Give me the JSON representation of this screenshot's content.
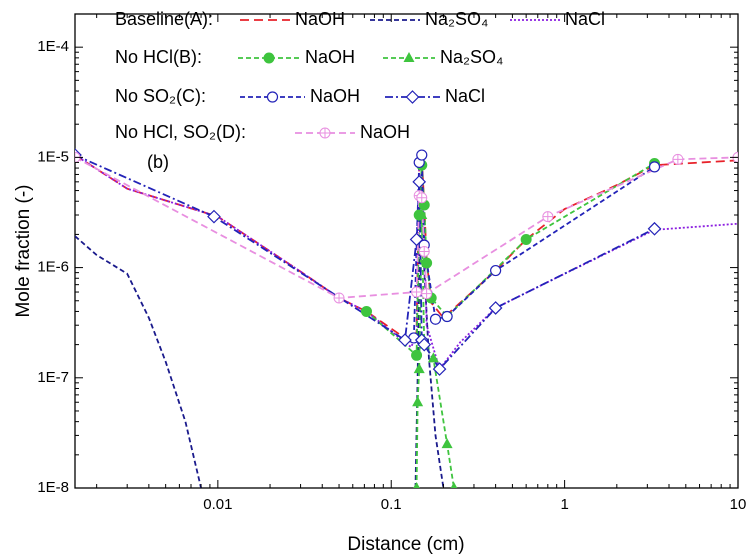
{
  "chart_data": {
    "type": "line",
    "x_label": "Distance (cm)",
    "y_label": "Mole fraction (-)",
    "annotation": "(b)",
    "x_log": true,
    "y_log": true,
    "xlim": [
      0.0015,
      10
    ],
    "ylim": [
      1e-08,
      0.0002
    ],
    "xticks": [
      0.01,
      0.1,
      1,
      10
    ],
    "yticks": [
      {
        "value": 1e-08,
        "label": "1E-8"
      },
      {
        "value": 1e-07,
        "label": "1E-7"
      },
      {
        "value": 1e-06,
        "label": "1E-6"
      },
      {
        "value": 1e-05,
        "label": "1E-5"
      },
      {
        "value": 0.0001,
        "label": "1E-4"
      }
    ],
    "groups": [
      {
        "label": "Baseline(A):",
        "series": [
          {
            "name": "NaOH",
            "color": "#e8222a",
            "dash": "9,5",
            "marker": "none",
            "x": [
              0.0015,
              0.003,
              0.01,
              0.03,
              0.05,
              0.072,
              0.13,
              0.14,
              0.145,
              0.15,
              0.155,
              0.16,
              0.17,
              0.2,
              0.25,
              0.4,
              0.6,
              1,
              2,
              3.3,
              10
            ],
            "values": [
              1.05e-05,
              5.2e-06,
              2.9e-06,
              9.2e-07,
              5.3e-07,
              4e-07,
              2.1e-07,
              2.6e-07,
              8.5e-06,
              1e-05,
              3.7e-06,
              1.2e-06,
              4.8e-07,
              3.5e-07,
              4.8e-07,
              9.4e-07,
              1.8e-06,
              3.4e-06,
              5.6e-06,
              8.5e-06,
              9.4e-06
            ]
          },
          {
            "name": "Na₂SO₄",
            "color": "#1a1a8c",
            "dash": "5,3",
            "marker": "none",
            "x": [
              0.0015,
              0.002,
              0.003,
              0.004,
              0.005,
              0.0065,
              0.008,
              0.1,
              0.138,
              0.142,
              0.145,
              0.15,
              0.155,
              0.165,
              0.18,
              0.2
            ],
            "values": [
              1.93e-06,
              1.3e-06,
              8.8e-07,
              3.5e-07,
              1.4e-07,
              4e-08,
              1e-08,
              null,
              1e-08,
              1e-07,
              1e-06,
              1e-05,
              1e-06,
              1.5e-07,
              3e-08,
              1e-08
            ]
          },
          {
            "name": "NaCl",
            "color": "#8b1ee0",
            "dash": "2,2",
            "marker": "none",
            "x": [
              0.0015,
              0.003,
              0.01,
              0.03,
              0.05,
              0.072,
              0.13,
              0.14,
              0.145,
              0.15,
              0.155,
              0.16,
              0.19,
              0.25,
              0.4,
              1,
              3.3,
              10
            ],
            "values": [
              1.05e-05,
              5.2e-06,
              2.9e-06,
              9.2e-07,
              5.3e-07,
              4e-07,
              1.9e-07,
              2.4e-07,
              8e-06,
              1e-05,
              2e-06,
              3e-07,
              1.2e-07,
              2.1e-07,
              4.3e-07,
              8.8e-07,
              2.2e-06,
              2.5e-06
            ]
          }
        ]
      },
      {
        "label": "No HCl(B):",
        "series": [
          {
            "name": "NaOH",
            "color": "#3ec43e",
            "dash": "5,3",
            "marker": "circle-filled",
            "x": [
              0.072,
              0.14,
              0.145,
              0.15,
              0.155,
              0.16,
              0.17,
              0.21,
              0.6,
              3.3
            ],
            "values": [
              4e-07,
              1.6e-07,
              3e-06,
              8.5e-06,
              3.7e-06,
              1.1e-06,
              5.3e-07,
              3.6e-07,
              1.8e-06,
              8.8e-06
            ]
          },
          {
            "name": "Na₂SO₄",
            "color": "#3ec43e",
            "dash": "5,3",
            "marker": "triangle-filled",
            "x": [
              0.14,
              0.142,
              0.145,
              0.15,
              0.155,
              0.175,
              0.21,
              0.23
            ],
            "values": [
              1e-08,
              6e-08,
              1.2e-07,
              3e-06,
              2e-07,
              1.5e-07,
              2.5e-08,
              1e-08
            ]
          }
        ]
      },
      {
        "label": "No SO₂(C):",
        "series": [
          {
            "name": "NaOH",
            "color": "#2323b8",
            "dash": "5,3",
            "marker": "circle-open",
            "x": [
              0.135,
              0.145,
              0.15,
              0.155,
              0.18,
              0.21,
              0.4,
              3.3
            ],
            "values": [
              2.3e-07,
              9e-06,
              1.05e-05,
              1.6e-06,
              3.4e-07,
              3.6e-07,
              9.4e-07,
              8.2e-06
            ]
          },
          {
            "name": "NaCl",
            "color": "#2323b8",
            "dash": "8,3,2,3",
            "marker": "diamond-open",
            "x": [
              0.0015,
              0.0095,
              0.12,
              0.14,
              0.145,
              0.15,
              0.155,
              0.19,
              0.4,
              3.3
            ],
            "values": [
              1.05e-05,
              2.9e-06,
              2.2e-07,
              1.8e-06,
              6e-06,
              2.2e-07,
              2e-07,
              1.2e-07,
              4.3e-07,
              2.25e-06
            ]
          }
        ]
      },
      {
        "label": "No HCl, SO₂(D):",
        "series": [
          {
            "name": "NaOH",
            "color": "#e88fe0",
            "dash": "7,4",
            "marker": "circle-plus",
            "x": [
              0.0015,
              0.05,
              0.14,
              0.145,
              0.15,
              0.155,
              0.16,
              0.8,
              4.5,
              10
            ],
            "values": [
              1e-05,
              5.3e-07,
              6e-07,
              4.5e-06,
              4.3e-06,
              1.4e-06,
              5.8e-07,
              2.9e-06,
              9.6e-06,
              1e-05
            ]
          }
        ]
      }
    ]
  }
}
